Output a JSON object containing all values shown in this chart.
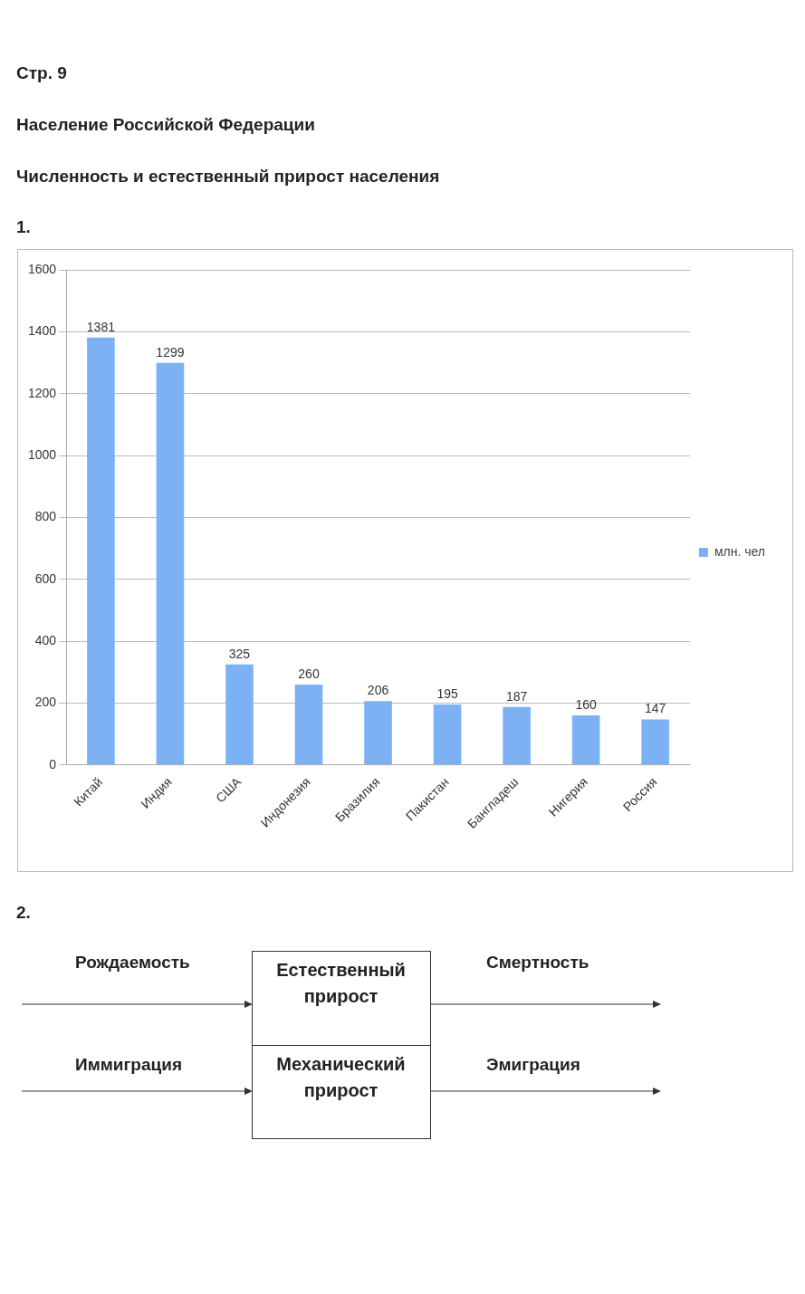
{
  "chart_data": {
    "type": "bar",
    "title": "Население Российской Федерации",
    "subtitle": "Численность и естественный прирост населения",
    "annotations": [
      "Стр. 9",
      "1.",
      "2.",
      "Рождаемость",
      "Естественный прирост",
      "Смертность",
      "Иммиграция",
      "Механический прирост",
      "Эмиграция"
    ],
    "categories": [
      "Китай",
      "Индия",
      "США",
      "Индонезия",
      "Бразилия",
      "Пакистан",
      "Бангладеш",
      "Нигерия",
      "Россия"
    ],
    "series": [
      {
        "name": "млн. чел",
        "color": "#7cb1f4",
        "values": [
          1381,
          1299,
          325,
          260,
          206,
          195,
          187,
          160,
          147
        ]
      }
    ],
    "ylim": [
      0,
      1600
    ],
    "yticks": [
      0,
      200,
      400,
      600,
      800,
      1000,
      1200,
      1400,
      1600
    ],
    "grid": "y",
    "legend": "right",
    "data_labels": true
  }
}
